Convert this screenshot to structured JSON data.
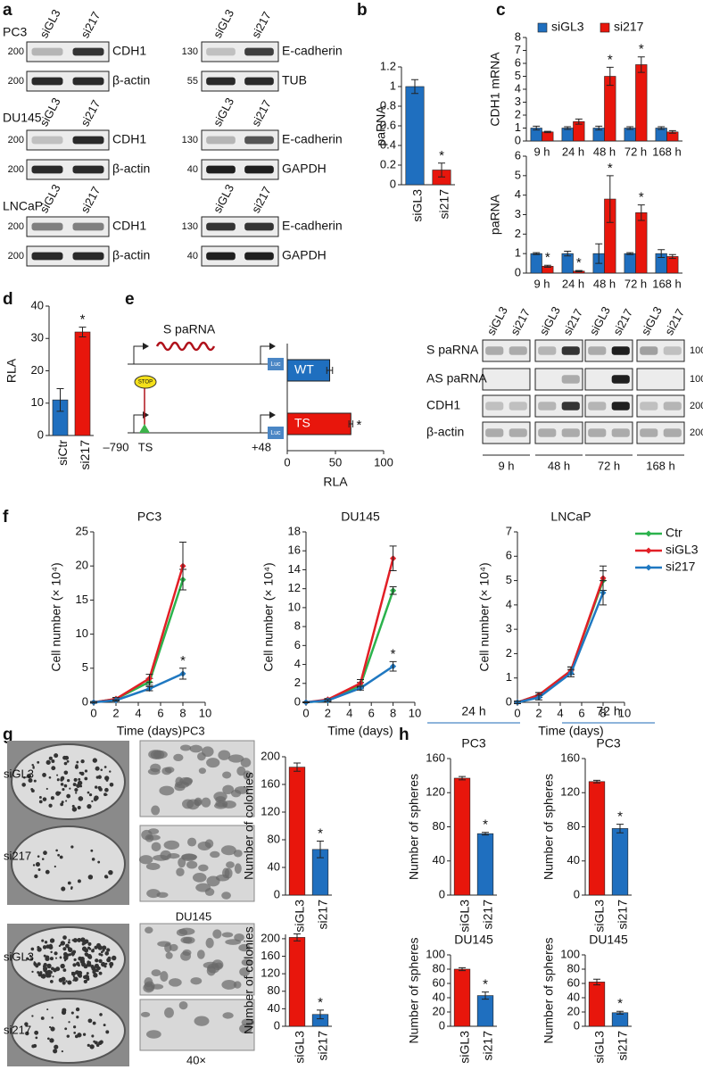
{
  "panel_letters": [
    "a",
    "b",
    "c",
    "d",
    "e",
    "f",
    "g",
    "h"
  ],
  "panel_a": {
    "lanes": [
      "siGL3",
      "si217"
    ],
    "blocks": [
      {
        "cell_line": "PC3",
        "left": [
          {
            "marker": "200",
            "label": "CDH1"
          },
          {
            "marker": "200",
            "label": "β-actin"
          }
        ],
        "right": [
          {
            "marker": "130",
            "label": "E-cadherin"
          },
          {
            "marker": "55",
            "label": "TUB"
          }
        ]
      },
      {
        "cell_line": "DU145",
        "left": [
          {
            "marker": "200",
            "label": "CDH1"
          },
          {
            "marker": "200",
            "label": "β-actin"
          }
        ],
        "right": [
          {
            "marker": "130",
            "label": "E-cadherin"
          },
          {
            "marker": "40",
            "label": "GAPDH"
          }
        ]
      },
      {
        "cell_line": "LNCaP",
        "left": [
          {
            "marker": "200",
            "label": "CDH1"
          },
          {
            "marker": "200",
            "label": "β-actin"
          }
        ],
        "right": [
          {
            "marker": "130",
            "label": "E-cadherin"
          },
          {
            "marker": "40",
            "label": "GAPDH"
          }
        ]
      }
    ]
  },
  "panel_e": {
    "construct": {
      "transcript": "S paRNA",
      "stop": "STOP",
      "site": "TS",
      "start": "–790",
      "end": "+48",
      "reporter": "Luc"
    },
    "blot": {
      "lanes": [
        "siGL3",
        "si217"
      ],
      "times": [
        "9 h",
        "48 h",
        "72 h",
        "168 h"
      ],
      "rows": [
        {
          "label": "S paRNA",
          "marker": "100"
        },
        {
          "label": "AS paRNA",
          "marker": "100"
        },
        {
          "label": "CDH1",
          "marker": "200"
        },
        {
          "label": "β-actin",
          "marker": "200"
        }
      ]
    }
  },
  "panel_g": {
    "cell_lines": [
      "PC3",
      "DU145"
    ],
    "conditions": [
      "siGL3",
      "si217"
    ],
    "magnification": "40×"
  },
  "chart_data": [
    {
      "type": "bar",
      "ylabel": "paRNA",
      "categories": [
        "siGL3",
        "si217"
      ],
      "values": [
        1,
        0.15
      ],
      "errors": [
        0.07,
        0.07
      ],
      "colors": [
        "#1f6fbf",
        "#e8160c"
      ],
      "significance": [
        null,
        "*"
      ],
      "ylim": [
        0,
        1.2
      ],
      "yticks": [
        0,
        0.2,
        0.4,
        0.6,
        0.8,
        1,
        1.2
      ]
    },
    {
      "type": "bar",
      "ylabel": "CDH1 mRNA",
      "categories": [
        "9 h",
        "24 h",
        "48 h",
        "72 h",
        "168 h"
      ],
      "legend": "top",
      "series": [
        {
          "name": "siGL3",
          "color": "#1f6fbf",
          "values": [
            1,
            1,
            1,
            1,
            1
          ],
          "errors": [
            0.15,
            0.1,
            0.15,
            0.1,
            0.1
          ],
          "significance": [
            null,
            null,
            null,
            null,
            null
          ]
        },
        {
          "name": "si217",
          "color": "#e8160c",
          "values": [
            0.7,
            1.5,
            5,
            5.9,
            0.7
          ],
          "errors": [
            0.05,
            0.2,
            0.7,
            0.6,
            0.1
          ],
          "significance": [
            null,
            null,
            "*",
            "*",
            null
          ]
        }
      ],
      "ylim": [
        0,
        8
      ],
      "yticks": [
        0,
        1,
        2,
        3,
        4,
        5,
        6,
        7,
        8
      ]
    },
    {
      "type": "bar",
      "ylabel": "paRNA",
      "categories": [
        "9 h",
        "24 h",
        "48 h",
        "72 h",
        "168 h"
      ],
      "series": [
        {
          "color": "#1f6fbf",
          "values": [
            1,
            1,
            1,
            1,
            1
          ],
          "errors": [
            0.05,
            0.12,
            0.5,
            0.05,
            0.2
          ],
          "significance": [
            null,
            null,
            null,
            null,
            null
          ]
        },
        {
          "color": "#e8160c",
          "values": [
            0.35,
            0.1,
            3.8,
            3.1,
            0.85
          ],
          "errors": [
            0.05,
            0.03,
            1.2,
            0.4,
            0.1
          ],
          "significance": [
            "*",
            "*",
            "*",
            "*",
            null
          ]
        }
      ],
      "ylim": [
        0,
        6
      ],
      "yticks": [
        0,
        1,
        2,
        3,
        4,
        5,
        6
      ]
    },
    {
      "type": "bar",
      "ylabel": "RLA",
      "categories": [
        "siCtr",
        "si217"
      ],
      "values": [
        11,
        32
      ],
      "errors": [
        3.5,
        1.5
      ],
      "colors": [
        "#1f6fbf",
        "#e8160c"
      ],
      "significance": [
        null,
        "*"
      ],
      "ylim": [
        0,
        40
      ],
      "yticks": [
        0,
        10,
        20,
        30,
        40
      ]
    },
    {
      "type": "barh",
      "xlabel": "RLA",
      "categories": [
        "WT",
        "TS"
      ],
      "values": [
        44,
        66
      ],
      "errors": [
        3,
        2
      ],
      "colors": [
        "#1f6fbf",
        "#e8160c"
      ],
      "significance": [
        null,
        "*"
      ],
      "xlim": [
        0,
        100
      ],
      "xticks": [
        0,
        50,
        100
      ]
    },
    {
      "type": "line",
      "title": "PC3",
      "xlabel": "Time (days)",
      "ylabel": "Cell number (× 10⁴)",
      "x": [
        0,
        2,
        5,
        8
      ],
      "series": [
        {
          "color": "#2bb24c",
          "values": [
            0,
            0.5,
            3,
            18
          ],
          "errors": [
            0.1,
            0.2,
            0.5,
            1.5
          ]
        },
        {
          "color": "#e21f26",
          "values": [
            0,
            0.5,
            3.5,
            20
          ],
          "errors": [
            0.1,
            0.2,
            0.6,
            3.5
          ]
        },
        {
          "color": "#1f78c1",
          "values": [
            0,
            0.3,
            2,
            4.2
          ],
          "errors": [
            0.1,
            0.1,
            0.3,
            0.8
          ],
          "significance": [
            null,
            null,
            null,
            "*"
          ]
        }
      ],
      "xlim": [
        0,
        10
      ],
      "xticks": [
        0,
        2,
        4,
        6,
        8,
        10
      ],
      "ylim": [
        0,
        25
      ],
      "yticks": [
        0,
        5,
        10,
        15,
        20,
        25
      ]
    },
    {
      "type": "line",
      "title": "DU145",
      "xlabel": "Time (days)",
      "ylabel": "Cell number (× 10⁴)",
      "x": [
        0,
        2,
        5,
        8
      ],
      "series": [
        {
          "color": "#2bb24c",
          "values": [
            0,
            0.2,
            1.8,
            11.8
          ],
          "errors": [
            0.05,
            0.1,
            0.3,
            0.4
          ]
        },
        {
          "color": "#e21f26",
          "values": [
            0,
            0.3,
            2,
            15.2
          ],
          "errors": [
            0.05,
            0.1,
            0.4,
            1.3
          ]
        },
        {
          "color": "#1f78c1",
          "values": [
            0,
            0.2,
            1.5,
            3.8
          ],
          "errors": [
            0.05,
            0.1,
            0.2,
            0.5
          ],
          "significance": [
            null,
            null,
            null,
            "*"
          ]
        }
      ],
      "xlim": [
        0,
        10
      ],
      "xticks": [
        0,
        2,
        4,
        6,
        8,
        10
      ],
      "ylim": [
        0,
        18
      ],
      "yticks": [
        0,
        2,
        4,
        6,
        8,
        10,
        12,
        14,
        16,
        18
      ]
    },
    {
      "type": "line",
      "title": "LNCaP",
      "xlabel": "Time (days)",
      "ylabel": "Cell number (× 10⁴)",
      "x": [
        0,
        2,
        5,
        8
      ],
      "legend": "right",
      "series": [
        {
          "name": "Ctr",
          "color": "#2bb24c",
          "values": [
            0,
            0.3,
            1.3,
            5
          ],
          "errors": [
            0.05,
            0.1,
            0.15,
            0.4
          ]
        },
        {
          "name": "siGL3",
          "color": "#e21f26",
          "values": [
            0,
            0.3,
            1.3,
            5.1
          ],
          "errors": [
            0.05,
            0.1,
            0.15,
            0.5
          ]
        },
        {
          "name": "si217",
          "color": "#1f78c1",
          "values": [
            0,
            0.2,
            1.2,
            4.5
          ],
          "errors": [
            0.05,
            0.1,
            0.15,
            0.5
          ]
        }
      ],
      "xlim": [
        0,
        10
      ],
      "xticks": [
        0,
        2,
        4,
        6,
        8,
        10
      ],
      "ylim": [
        0,
        7
      ],
      "yticks": [
        0,
        1,
        2,
        3,
        4,
        5,
        6,
        7
      ]
    },
    {
      "type": "bar",
      "ylabel": "Number of colonies",
      "categories": [
        "siGL3",
        "si217"
      ],
      "values": [
        185,
        66
      ],
      "errors": [
        6,
        12
      ],
      "colors": [
        "#e8160c",
        "#1f6fbf"
      ],
      "significance": [
        null,
        "*"
      ],
      "ylim": [
        0,
        200
      ],
      "yticks": [
        0,
        40,
        80,
        120,
        160,
        200
      ]
    },
    {
      "type": "bar",
      "ylabel": "Number of colonies",
      "categories": [
        "siGL3",
        "si217"
      ],
      "values": [
        203,
        27
      ],
      "errors": [
        8,
        10
      ],
      "colors": [
        "#e8160c",
        "#1f6fbf"
      ],
      "significance": [
        null,
        "*"
      ],
      "ylim": [
        0,
        210
      ],
      "yticks": [
        0,
        40,
        80,
        120,
        160,
        200
      ]
    },
    {
      "type": "bar",
      "group_title": "24 h",
      "title": "PC3",
      "ylabel": "Number of spheres",
      "categories": [
        "siGL3",
        "si217"
      ],
      "values": [
        137,
        72
      ],
      "errors": [
        2,
        1.5
      ],
      "colors": [
        "#e8160c",
        "#1f6fbf"
      ],
      "significance": [
        null,
        "*"
      ],
      "ylim": [
        0,
        160
      ],
      "yticks": [
        0,
        40,
        80,
        120,
        160
      ]
    },
    {
      "type": "bar",
      "group_title": "72 h",
      "title": "PC3",
      "ylabel": "Number of spheres",
      "categories": [
        "siGL3",
        "si217"
      ],
      "values": [
        133,
        78
      ],
      "errors": [
        1.5,
        5
      ],
      "colors": [
        "#e8160c",
        "#1f6fbf"
      ],
      "significance": [
        null,
        "*"
      ],
      "ylim": [
        0,
        160
      ],
      "yticks": [
        0,
        40,
        80,
        120,
        160
      ]
    },
    {
      "type": "bar",
      "title": "DU145",
      "ylabel": "Number of spheres",
      "categories": [
        "siGL3",
        "si217"
      ],
      "values": [
        80,
        43
      ],
      "errors": [
        2,
        5
      ],
      "colors": [
        "#e8160c",
        "#1f6fbf"
      ],
      "significance": [
        null,
        "*"
      ],
      "ylim": [
        0,
        100
      ],
      "yticks": [
        0,
        20,
        40,
        60,
        80,
        100
      ]
    },
    {
      "type": "bar",
      "title": "DU145",
      "ylabel": "Number of spheres",
      "categories": [
        "siGL3",
        "si217"
      ],
      "values": [
        62,
        19
      ],
      "errors": [
        4,
        2
      ],
      "colors": [
        "#e8160c",
        "#1f6fbf"
      ],
      "significance": [
        null,
        "*"
      ],
      "ylim": [
        0,
        100
      ],
      "yticks": [
        0,
        20,
        40,
        60,
        80,
        100
      ]
    }
  ]
}
